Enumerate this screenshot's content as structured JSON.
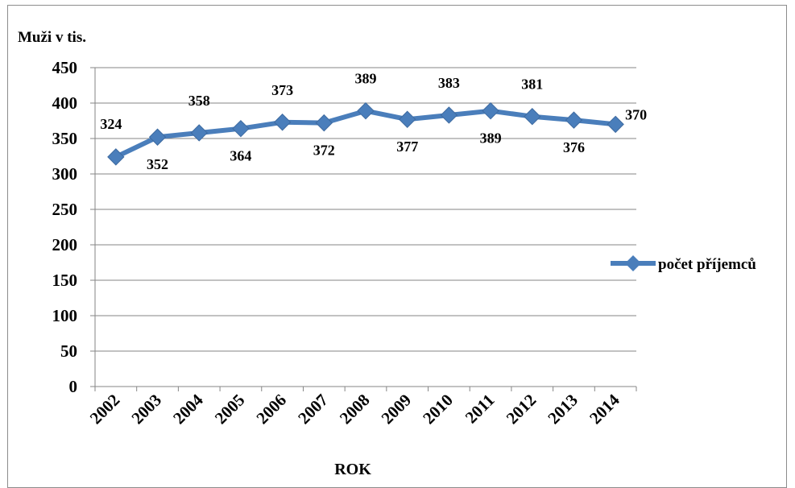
{
  "chart_data": {
    "type": "line",
    "title": "",
    "ylabel": "Muži v tis.",
    "xlabel": "ROK",
    "categories": [
      "2002",
      "2003",
      "2004",
      "2005",
      "2006",
      "2007",
      "2008",
      "2009",
      "2010",
      "2011",
      "2012",
      "2013",
      "2014"
    ],
    "series": [
      {
        "name": "počet příjemců",
        "values": [
          324,
          352,
          358,
          364,
          373,
          372,
          389,
          377,
          383,
          389,
          381,
          376,
          370
        ],
        "color": "#4a7ebb"
      }
    ],
    "ylim": [
      0,
      450
    ],
    "yticks": [
      0,
      50,
      100,
      150,
      200,
      250,
      300,
      350,
      400,
      450
    ],
    "grid": true,
    "legend": "right",
    "data_labels": true
  }
}
